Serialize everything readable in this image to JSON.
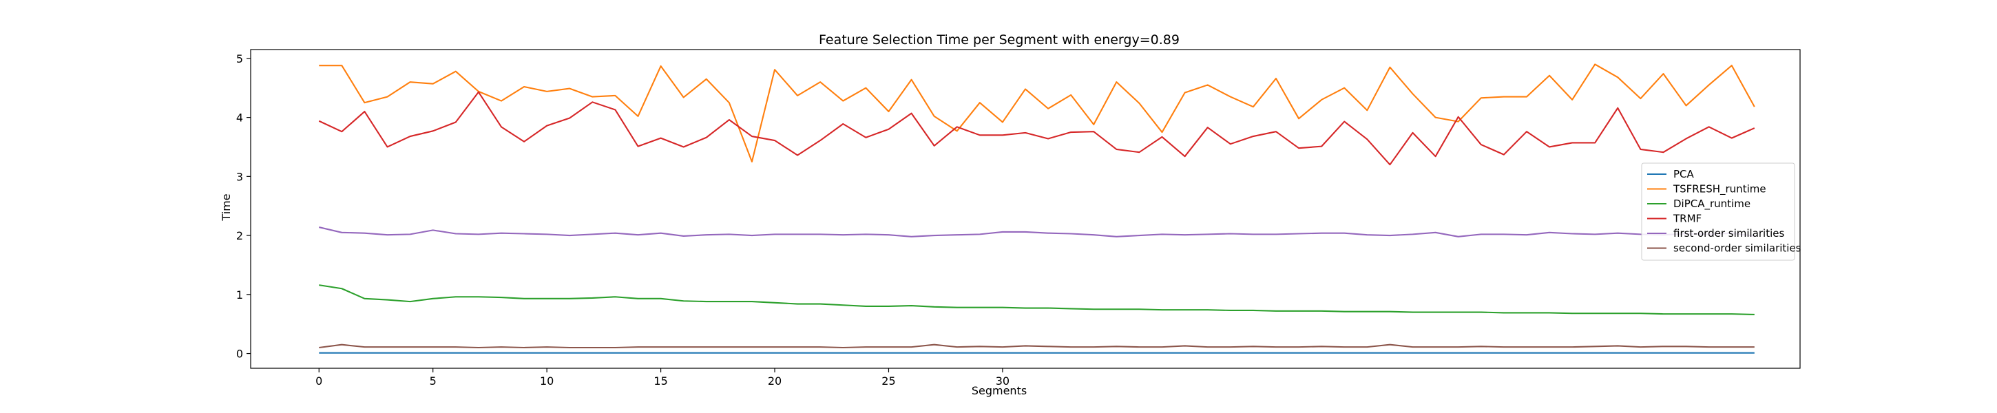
{
  "chart_data": {
    "type": "line",
    "title": "Feature Selection Time per Segment with energy=0.89",
    "xlabel": "Segments",
    "ylabel": "Time",
    "xlim": [
      -3.0,
      65.0
    ],
    "ylim": [
      -0.25,
      5.15
    ],
    "xticks": [
      0,
      5,
      10,
      15,
      20,
      25,
      30
    ],
    "yticks": [
      0,
      1,
      2,
      3,
      4,
      5
    ],
    "grid": false,
    "legend_position": "center-right",
    "x": [
      0,
      1,
      2,
      3,
      4,
      5,
      6,
      7,
      8,
      9,
      10,
      11,
      12,
      13,
      14,
      15,
      16,
      17,
      18,
      19,
      20,
      21,
      22,
      23,
      24,
      25,
      26,
      27,
      28,
      29,
      30,
      31,
      32,
      33,
      34,
      35,
      36,
      37,
      38,
      39,
      40,
      41,
      42,
      43,
      44,
      45,
      46,
      47,
      48,
      49,
      50,
      51,
      52,
      53,
      54,
      55,
      56,
      57,
      58,
      59,
      60,
      61,
      62,
      63
    ],
    "series": [
      {
        "name": "PCA",
        "color": "#1f77b4",
        "values": [
          0.01,
          0.01,
          0.01,
          0.01,
          0.01,
          0.01,
          0.01,
          0.01,
          0.01,
          0.01,
          0.01,
          0.01,
          0.01,
          0.01,
          0.01,
          0.01,
          0.01,
          0.01,
          0.01,
          0.01,
          0.01,
          0.01,
          0.01,
          0.01,
          0.01,
          0.01,
          0.01,
          0.01,
          0.01,
          0.01,
          0.01,
          0.01,
          0.01,
          0.01,
          0.01,
          0.01,
          0.01,
          0.01,
          0.01,
          0.01,
          0.01,
          0.01,
          0.01,
          0.01,
          0.01,
          0.01,
          0.01,
          0.01,
          0.01,
          0.01,
          0.01,
          0.01,
          0.01,
          0.01,
          0.01,
          0.01,
          0.01,
          0.01,
          0.01,
          0.01,
          0.01,
          0.01,
          0.01,
          0.01
        ]
      },
      {
        "name": "TSFRESH_runtime",
        "color": "#ff7f0e",
        "values": [
          4.88,
          4.88,
          4.25,
          4.35,
          4.6,
          4.57,
          4.78,
          4.44,
          4.28,
          4.52,
          4.44,
          4.49,
          4.35,
          4.37,
          4.02,
          4.87,
          4.34,
          4.65,
          4.25,
          3.25,
          4.81,
          4.37,
          4.6,
          4.28,
          4.5,
          4.1,
          4.64,
          4.02,
          3.77,
          4.25,
          3.92,
          4.48,
          4.15,
          4.38,
          3.88,
          4.6,
          4.24,
          3.75,
          4.42,
          4.55,
          4.35,
          4.18,
          4.66,
          3.98,
          4.3,
          4.5,
          4.12,
          4.85,
          4.4,
          4.0,
          3.93,
          4.33,
          4.35,
          4.35,
          4.71,
          4.3,
          4.9,
          4.68,
          4.32,
          4.74,
          4.2,
          4.55,
          4.88,
          4.18
        ]
      },
      {
        "name": "DiPCA_runtime",
        "color": "#2ca02c",
        "values": [
          1.16,
          1.1,
          0.93,
          0.91,
          0.88,
          0.93,
          0.96,
          0.96,
          0.95,
          0.93,
          0.93,
          0.93,
          0.94,
          0.96,
          0.93,
          0.93,
          0.89,
          0.88,
          0.88,
          0.88,
          0.86,
          0.84,
          0.84,
          0.82,
          0.8,
          0.8,
          0.81,
          0.79,
          0.78,
          0.78,
          0.78,
          0.77,
          0.77,
          0.76,
          0.75,
          0.75,
          0.75,
          0.74,
          0.74,
          0.74,
          0.73,
          0.73,
          0.72,
          0.72,
          0.72,
          0.71,
          0.71,
          0.71,
          0.7,
          0.7,
          0.7,
          0.7,
          0.69,
          0.69,
          0.69,
          0.68,
          0.68,
          0.68,
          0.68,
          0.67,
          0.67,
          0.67,
          0.67,
          0.66
        ]
      },
      {
        "name": "TRMF",
        "color": "#d62728",
        "values": [
          3.94,
          3.76,
          4.1,
          3.5,
          3.68,
          3.77,
          3.92,
          4.43,
          3.84,
          3.59,
          3.86,
          3.99,
          4.26,
          4.13,
          3.51,
          3.65,
          3.5,
          3.66,
          3.96,
          3.68,
          3.61,
          3.36,
          3.61,
          3.89,
          3.66,
          3.8,
          4.07,
          3.52,
          3.84,
          3.7,
          3.7,
          3.74,
          3.64,
          3.75,
          3.76,
          3.46,
          3.41,
          3.67,
          3.34,
          3.83,
          3.55,
          3.68,
          3.76,
          3.48,
          3.51,
          3.93,
          3.63,
          3.2,
          3.74,
          3.34,
          4.01,
          3.54,
          3.37,
          3.76,
          3.5,
          3.57,
          3.57,
          4.16,
          3.46,
          3.41,
          3.64,
          3.84,
          3.65,
          3.82
        ]
      },
      {
        "name": "first-order similarities",
        "color": "#9467bd",
        "values": [
          2.14,
          2.05,
          2.04,
          2.01,
          2.02,
          2.09,
          2.03,
          2.02,
          2.04,
          2.03,
          2.02,
          2.0,
          2.02,
          2.04,
          2.01,
          2.04,
          1.99,
          2.01,
          2.02,
          2.0,
          2.02,
          2.02,
          2.02,
          2.01,
          2.02,
          2.01,
          1.98,
          2.0,
          2.01,
          2.02,
          2.06,
          2.06,
          2.04,
          2.03,
          2.01,
          1.98,
          2.0,
          2.02,
          2.01,
          2.02,
          2.03,
          2.02,
          2.02,
          2.03,
          2.04,
          2.04,
          2.01,
          2.0,
          2.02,
          2.05,
          1.98,
          2.02,
          2.02,
          2.01,
          2.05,
          2.03,
          2.02,
          2.04,
          2.02,
          2.01,
          2.03,
          2.02,
          2.04,
          1.99
        ]
      },
      {
        "name": "second-order similarities",
        "color": "#8c564b",
        "values": [
          0.1,
          0.15,
          0.11,
          0.11,
          0.11,
          0.11,
          0.11,
          0.1,
          0.11,
          0.1,
          0.11,
          0.1,
          0.1,
          0.1,
          0.11,
          0.11,
          0.11,
          0.11,
          0.11,
          0.11,
          0.11,
          0.11,
          0.11,
          0.1,
          0.11,
          0.11,
          0.11,
          0.15,
          0.11,
          0.12,
          0.11,
          0.13,
          0.12,
          0.11,
          0.11,
          0.12,
          0.11,
          0.11,
          0.13,
          0.11,
          0.11,
          0.12,
          0.11,
          0.11,
          0.12,
          0.11,
          0.11,
          0.15,
          0.11,
          0.11,
          0.11,
          0.12,
          0.11,
          0.11,
          0.11,
          0.11,
          0.12,
          0.13,
          0.11,
          0.12,
          0.12,
          0.11,
          0.11,
          0.11
        ]
      }
    ]
  }
}
